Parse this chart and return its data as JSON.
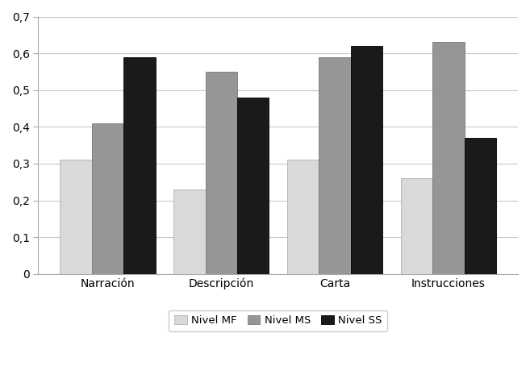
{
  "categories": [
    "Narración",
    "Descripción",
    "Carta",
    "Instrucciones"
  ],
  "series": {
    "Nivel MF": [
      0.31,
      0.23,
      0.31,
      0.26
    ],
    "Nivel MS": [
      0.41,
      0.55,
      0.59,
      0.63
    ],
    "Nivel SS": [
      0.59,
      0.48,
      0.62,
      0.37
    ]
  },
  "bar_colors": {
    "Nivel MF": "#d9d9d9",
    "Nivel MS": "#969696",
    "Nivel SS": "#1a1a1a"
  },
  "bar_edge_colors": {
    "Nivel MF": "#b0b0b0",
    "Nivel MS": "#787878",
    "Nivel SS": "#000000"
  },
  "ylim": [
    0,
    0.7
  ],
  "yticks": [
    0,
    0.1,
    0.2,
    0.3,
    0.4,
    0.5,
    0.6,
    0.7
  ],
  "ytick_labels": [
    "0",
    "0,1",
    "0,2",
    "0,3",
    "0,4",
    "0,5",
    "0,6",
    "0,7"
  ],
  "legend_labels": [
    "Nivel MF",
    "Nivel MS",
    "Nivel SS"
  ],
  "bar_width": 0.28,
  "background_color": "#ffffff",
  "grid_color": "#c8c8c8",
  "font_family": "DejaVu Sans",
  "tick_fontsize": 10,
  "xticklabel_fontsize": 10
}
